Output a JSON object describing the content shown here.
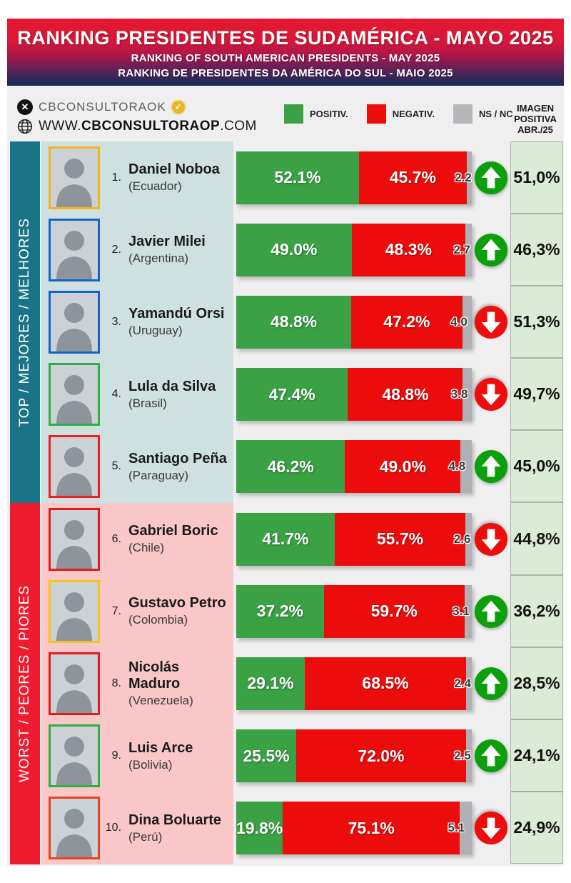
{
  "header": {
    "title": "RANKING PRESIDENTES DE SUDAMÉRICA - MAYO 2025",
    "subtitle_en": "RANKING OF SOUTH AMERICAN PRESIDENTS - MAY 2025",
    "subtitle_pt": "RANKING DE PRESIDENTES DA AMÉRICA DO SUL - MAIO 2025"
  },
  "source": {
    "x_handle": "CBCONSULTORAOK",
    "website_prefix": "WWW.",
    "website_bold": "CBCONSULTORAOP",
    "website_suffix": ".COM"
  },
  "legend": [
    {
      "label": "POSITIV.",
      "color": "#3aa145"
    },
    {
      "label": "NEGATIV.",
      "color": "#ec0c0c"
    },
    {
      "label": "NS / NC",
      "color": "#b7b7bb"
    }
  ],
  "right_header": {
    "line1": "IMAGEN",
    "line2": "POSITIVA",
    "line3": "ABR./25"
  },
  "groups": {
    "top": {
      "label": "TOP / MEJORES / MELHORES"
    },
    "worst": {
      "label": "WORST / PEORES / PIORES"
    }
  },
  "colors": {
    "positive": "#3aa145",
    "negative": "#ec0c0c",
    "nsnc": "#b0b0b4",
    "arrow_up": "#0ba00b",
    "arrow_down": "#ee0d0d",
    "top_strip": "#1a7487",
    "worst_strip": "#ee1c2e"
  },
  "rows": [
    {
      "rank": "1.",
      "name": "Daniel Noboa",
      "country": "(Ecuador)",
      "positive": 52.1,
      "negative": 45.7,
      "ns_nc": 2.2,
      "trend": "up",
      "previous": "51,0%",
      "group": "top",
      "photo_border": "#f2b51c"
    },
    {
      "rank": "2.",
      "name": "Javier Milei",
      "country": "(Argentina)",
      "positive": 49.0,
      "negative": 48.3,
      "ns_nc": 2.7,
      "trend": "up",
      "previous": "46,3%",
      "group": "top",
      "photo_border": "#1565c8"
    },
    {
      "rank": "3.",
      "name": "Yamandú Orsi",
      "country": "(Uruguay)",
      "positive": 48.8,
      "negative": 47.2,
      "ns_nc": 4.0,
      "trend": "down",
      "previous": "51,3%",
      "group": "top",
      "photo_border": "#1565c8"
    },
    {
      "rank": "4.",
      "name": "Lula da Silva",
      "country": "(Brasil)",
      "positive": 47.4,
      "negative": 48.8,
      "ns_nc": 3.8,
      "trend": "down",
      "previous": "49,7%",
      "group": "top",
      "photo_border": "#2fae44"
    },
    {
      "rank": "5.",
      "name": "Santiago Peña",
      "country": "(Paraguay)",
      "positive": 46.2,
      "negative": 49.0,
      "ns_nc": 4.8,
      "trend": "up",
      "previous": "45,0%",
      "group": "top",
      "photo_border": "#ef1d1d"
    },
    {
      "rank": "6.",
      "name": "Gabriel Boric",
      "country": "(Chile)",
      "positive": 41.7,
      "negative": 55.7,
      "ns_nc": 2.6,
      "trend": "down",
      "previous": "44,8%",
      "group": "worst",
      "photo_border": "#e01b1b"
    },
    {
      "rank": "7.",
      "name": "Gustavo Petro",
      "country": "(Colombia)",
      "positive": 37.2,
      "negative": 59.7,
      "ns_nc": 3.1,
      "trend": "up",
      "previous": "36,2%",
      "group": "worst",
      "photo_border": "#f2c51c"
    },
    {
      "rank": "8.",
      "name": "Nicolás Maduro",
      "country": "(Venezuela)",
      "positive": 29.1,
      "negative": 68.5,
      "ns_nc": 2.4,
      "trend": "up",
      "previous": "28,5%",
      "group": "worst",
      "photo_border": "#e01b1b"
    },
    {
      "rank": "9.",
      "name": "Luis Arce",
      "country": "(Bolivia)",
      "positive": 25.5,
      "negative": 72.0,
      "ns_nc": 2.5,
      "trend": "up",
      "previous": "24,1%",
      "group": "worst",
      "photo_border": "#2fae44"
    },
    {
      "rank": "10.",
      "name": "Dina Boluarte",
      "country": "(Perú)",
      "positive": 19.8,
      "negative": 75.1,
      "ns_nc": 5.1,
      "trend": "down",
      "previous": "24,9%",
      "group": "worst",
      "photo_border": "#e8431f"
    }
  ],
  "chart_data": {
    "type": "bar",
    "stacked": true,
    "orientation": "horizontal",
    "title": "RANKING PRESIDENTES DE SUDAMÉRICA - MAYO 2025",
    "categories": [
      "Daniel Noboa (Ecuador)",
      "Javier Milei (Argentina)",
      "Yamandú Orsi (Uruguay)",
      "Lula da Silva (Brasil)",
      "Santiago Peña (Paraguay)",
      "Gabriel Boric (Chile)",
      "Gustavo Petro (Colombia)",
      "Nicolás Maduro (Venezuela)",
      "Luis Arce (Bolivia)",
      "Dina Boluarte (Perú)"
    ],
    "series": [
      {
        "name": "POSITIV.",
        "color": "#3aa145",
        "values": [
          52.1,
          49.0,
          48.8,
          47.4,
          46.2,
          41.7,
          37.2,
          29.1,
          25.5,
          19.8
        ]
      },
      {
        "name": "NEGATIV.",
        "color": "#ec0c0c",
        "values": [
          45.7,
          48.3,
          47.2,
          48.8,
          49.0,
          55.7,
          59.7,
          68.5,
          72.0,
          75.1
        ]
      },
      {
        "name": "NS / NC",
        "color": "#b0b0b4",
        "values": [
          2.2,
          2.7,
          4.0,
          3.8,
          4.8,
          2.6,
          3.1,
          2.4,
          2.5,
          5.1
        ]
      }
    ],
    "annotations": {
      "trend_vs_previous_month": [
        "up",
        "up",
        "down",
        "down",
        "up",
        "down",
        "up",
        "up",
        "up",
        "down"
      ],
      "imagen_positiva_abr_25": [
        "51,0%",
        "46,3%",
        "51,3%",
        "49,7%",
        "45,0%",
        "44,8%",
        "36,2%",
        "28,5%",
        "24,1%",
        "24,9%"
      ]
    },
    "xlim": [
      0,
      100
    ],
    "legend_position": "top",
    "grid": false
  }
}
